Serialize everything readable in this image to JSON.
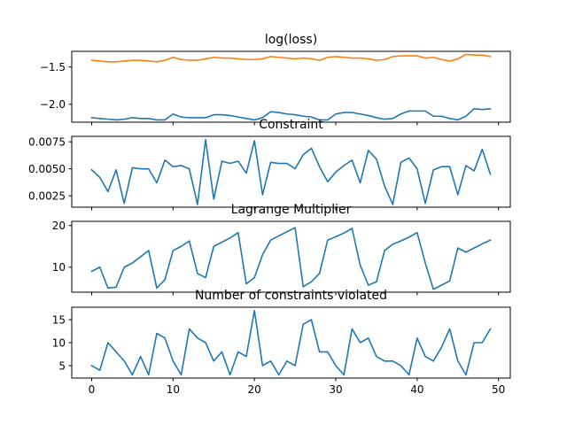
{
  "colors": {
    "blue": "#1f77b4",
    "orange": "#ff7f0e"
  },
  "chart_data": [
    {
      "type": "line",
      "title": "log(loss)",
      "xlim": [
        -2.45,
        51.45
      ],
      "ylim": [
        -2.24,
        -1.29
      ],
      "xticks": [
        0,
        10,
        20,
        30,
        40,
        50
      ],
      "yticks": [
        {
          "value": -1.5,
          "label": "−1.5"
        },
        {
          "value": -2.0,
          "label": "−2.0"
        }
      ],
      "series": [
        {
          "color": "orange",
          "values": [
            -1.41,
            -1.42,
            -1.43,
            -1.43,
            -1.42,
            -1.41,
            -1.41,
            -1.42,
            -1.43,
            -1.41,
            -1.37,
            -1.4,
            -1.41,
            -1.41,
            -1.39,
            -1.37,
            -1.38,
            -1.38,
            -1.39,
            -1.4,
            -1.4,
            -1.39,
            -1.36,
            -1.37,
            -1.38,
            -1.39,
            -1.38,
            -1.39,
            -1.41,
            -1.37,
            -1.36,
            -1.37,
            -1.38,
            -1.38,
            -1.39,
            -1.41,
            -1.4,
            -1.36,
            -1.35,
            -1.35,
            -1.35,
            -1.38,
            -1.37,
            -1.4,
            -1.42,
            -1.39,
            -1.33,
            -1.34,
            -1.34,
            -1.36
          ]
        },
        {
          "color": "blue",
          "values": [
            -2.18,
            -2.19,
            -2.2,
            -2.21,
            -2.2,
            -2.18,
            -2.19,
            -2.19,
            -2.21,
            -2.21,
            -2.13,
            -2.17,
            -2.18,
            -2.18,
            -2.18,
            -2.14,
            -2.14,
            -2.15,
            -2.17,
            -2.19,
            -2.21,
            -2.18,
            -2.1,
            -2.11,
            -2.13,
            -2.14,
            -2.16,
            -2.17,
            -2.21,
            -2.21,
            -2.13,
            -2.11,
            -2.11,
            -2.13,
            -2.15,
            -2.18,
            -2.2,
            -2.19,
            -2.13,
            -2.09,
            -2.09,
            -2.09,
            -2.16,
            -2.16,
            -2.19,
            -2.21,
            -2.16,
            -2.06,
            -2.07,
            -2.06
          ]
        }
      ]
    },
    {
      "type": "line",
      "title": "Constraint",
      "xlim": [
        -2.45,
        51.45
      ],
      "ylim": [
        0.00145,
        0.008
      ],
      "xticks": [
        0,
        10,
        20,
        30,
        40,
        50
      ],
      "yticks": [
        {
          "value": 0.0025,
          "label": "0.0025"
        },
        {
          "value": 0.005,
          "label": "0.0050"
        },
        {
          "value": 0.0075,
          "label": "0.0075"
        }
      ],
      "series": [
        {
          "color": "blue",
          "values": [
            0.0049,
            0.0042,
            0.0029,
            0.0049,
            0.0018,
            0.0051,
            0.005,
            0.005,
            0.0037,
            0.0058,
            0.0052,
            0.0053,
            0.005,
            0.0017,
            0.0077,
            0.0022,
            0.0057,
            0.0055,
            0.0057,
            0.0046,
            0.0076,
            0.0026,
            0.0056,
            0.0055,
            0.0055,
            0.005,
            0.0063,
            0.0069,
            0.0052,
            0.0038,
            0.0047,
            0.0053,
            0.0058,
            0.0037,
            0.0067,
            0.0059,
            0.0034,
            0.0017,
            0.0056,
            0.006,
            0.005,
            0.0018,
            0.0049,
            0.0052,
            0.0052,
            0.0026,
            0.0053,
            0.0048,
            0.0068,
            0.0045
          ]
        }
      ]
    },
    {
      "type": "line",
      "title": "Lagrange Multiplier",
      "xlim": [
        -2.45,
        51.45
      ],
      "ylim": [
        4.0,
        21.0
      ],
      "xticks": [
        0,
        10,
        20,
        30,
        40,
        50
      ],
      "yticks": [
        {
          "value": 10,
          "label": "10"
        },
        {
          "value": 20,
          "label": "20"
        }
      ],
      "series": [
        {
          "color": "blue",
          "values": [
            9.0,
            10.0,
            5.0,
            5.2,
            10.0,
            11.0,
            12.5,
            14.0,
            5.0,
            7.0,
            14.0,
            15.0,
            16.3,
            8.5,
            7.5,
            15.0,
            16.0,
            17.0,
            18.3,
            6.0,
            7.5,
            13.0,
            16.5,
            17.5,
            18.5,
            19.5,
            5.3,
            6.5,
            8.5,
            16.5,
            17.3,
            18.2,
            19.3,
            10.5,
            5.7,
            6.5,
            14.0,
            15.5,
            16.3,
            17.2,
            18.3,
            11.0,
            4.7,
            5.7,
            6.7,
            14.6,
            13.6,
            14.6,
            15.6,
            16.5
          ]
        }
      ]
    },
    {
      "type": "line",
      "title": "Number of constraints violated",
      "xlim": [
        -2.45,
        51.45
      ],
      "ylim": [
        2.3,
        17.7
      ],
      "xticks": [
        0,
        10,
        20,
        30,
        40,
        50
      ],
      "yticks": [
        {
          "value": 5,
          "label": "5"
        },
        {
          "value": 10,
          "label": "10"
        },
        {
          "value": 15,
          "label": "15"
        }
      ],
      "series": [
        {
          "color": "blue",
          "values": [
            5,
            4,
            10,
            8,
            6,
            3,
            7,
            3,
            12,
            11,
            6,
            3,
            13,
            11,
            10,
            6,
            8,
            3,
            8,
            7,
            17,
            5,
            6,
            3,
            6,
            5,
            14,
            15,
            8,
            8,
            5,
            3,
            13,
            10,
            11,
            7,
            6,
            6,
            5,
            3,
            11,
            7,
            6,
            9,
            13,
            6,
            3,
            10,
            10,
            13
          ]
        }
      ]
    }
  ]
}
